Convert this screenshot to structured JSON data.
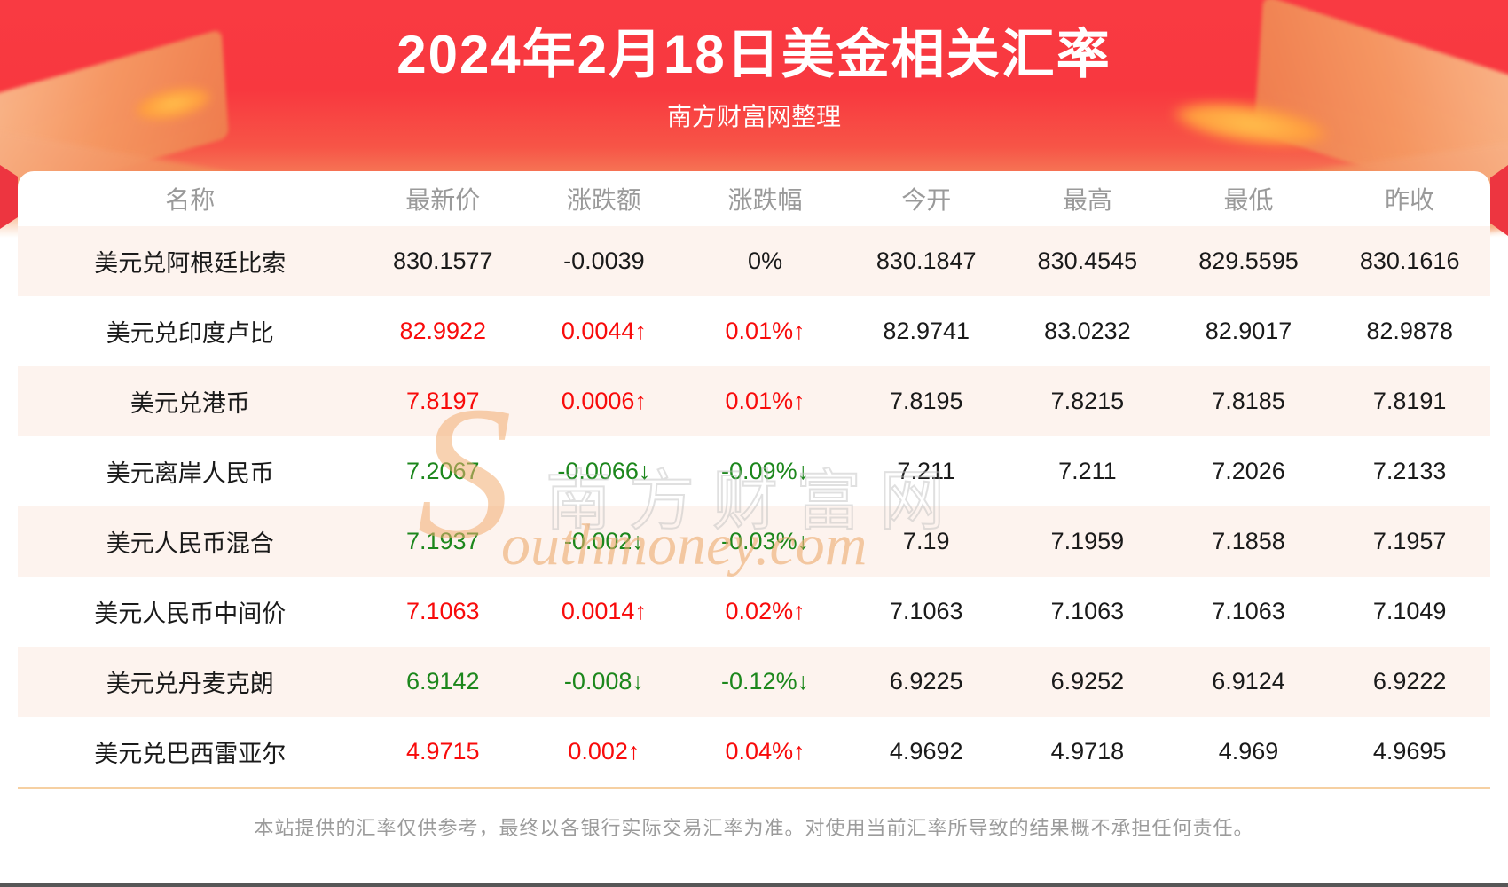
{
  "page": {
    "title": "2024年2月18日美金相关汇率",
    "subtitle": "南方财富网整理",
    "disclaimer": "本站提供的汇率仅供参考，最终以各银行实际交易汇率为准。对使用当前汇率所导致的结果概不承担任何责任。"
  },
  "watermark": {
    "initial": "S",
    "cn": "南方财富网",
    "en": "outhmoney.com"
  },
  "colors": {
    "hero_red_top": "#f93a42",
    "hero_red_bottom": "#f58a5e",
    "stripe_row_bg": "#fdf3ee",
    "up_red": "#f80b0b",
    "down_green": "#1c871c",
    "neutral_black": "#1a1a1a",
    "header_gray": "#9a9a9a",
    "footer_divider_orange": "#f6d0a2",
    "disclaimer_gray": "#9b9b9b"
  },
  "table": {
    "columns": [
      "名称",
      "最新价",
      "涨跌额",
      "涨跌幅",
      "今开",
      "最高",
      "最低",
      "昨收"
    ],
    "rows": [
      {
        "name": "美元兑阿根廷比索",
        "latest": "830.1577",
        "change": "-0.0039",
        "change_pct": "0%",
        "open": "830.1847",
        "high": "830.4545",
        "low": "829.5595",
        "prev_close": "830.1616",
        "trend": "flat"
      },
      {
        "name": "美元兑印度卢比",
        "latest": "82.9922",
        "change": "0.0044↑",
        "change_pct": "0.01%↑",
        "open": "82.9741",
        "high": "83.0232",
        "low": "82.9017",
        "prev_close": "82.9878",
        "trend": "up"
      },
      {
        "name": "美元兑港币",
        "latest": "7.8197",
        "change": "0.0006↑",
        "change_pct": "0.01%↑",
        "open": "7.8195",
        "high": "7.8215",
        "low": "7.8185",
        "prev_close": "7.8191",
        "trend": "up"
      },
      {
        "name": "美元离岸人民币",
        "latest": "7.2067",
        "change": "-0.0066↓",
        "change_pct": "-0.09%↓",
        "open": "7.211",
        "high": "7.211",
        "low": "7.2026",
        "prev_close": "7.2133",
        "trend": "down"
      },
      {
        "name": "美元人民币混合",
        "latest": "7.1937",
        "change": "-0.002↓",
        "change_pct": "-0.03%↓",
        "open": "7.19",
        "high": "7.1959",
        "low": "7.1858",
        "prev_close": "7.1957",
        "trend": "down"
      },
      {
        "name": "美元人民币中间价",
        "latest": "7.1063",
        "change": "0.0014↑",
        "change_pct": "0.02%↑",
        "open": "7.1063",
        "high": "7.1063",
        "low": "7.1063",
        "prev_close": "7.1049",
        "trend": "up"
      },
      {
        "name": "美元兑丹麦克朗",
        "latest": "6.9142",
        "change": "-0.008↓",
        "change_pct": "-0.12%↓",
        "open": "6.9225",
        "high": "6.9252",
        "low": "6.9124",
        "prev_close": "6.9222",
        "trend": "down"
      },
      {
        "name": "美元兑巴西雷亚尔",
        "latest": "4.9715",
        "change": "0.002↑",
        "change_pct": "0.04%↑",
        "open": "4.9692",
        "high": "4.9718",
        "low": "4.969",
        "prev_close": "4.9695",
        "trend": "up"
      }
    ]
  }
}
